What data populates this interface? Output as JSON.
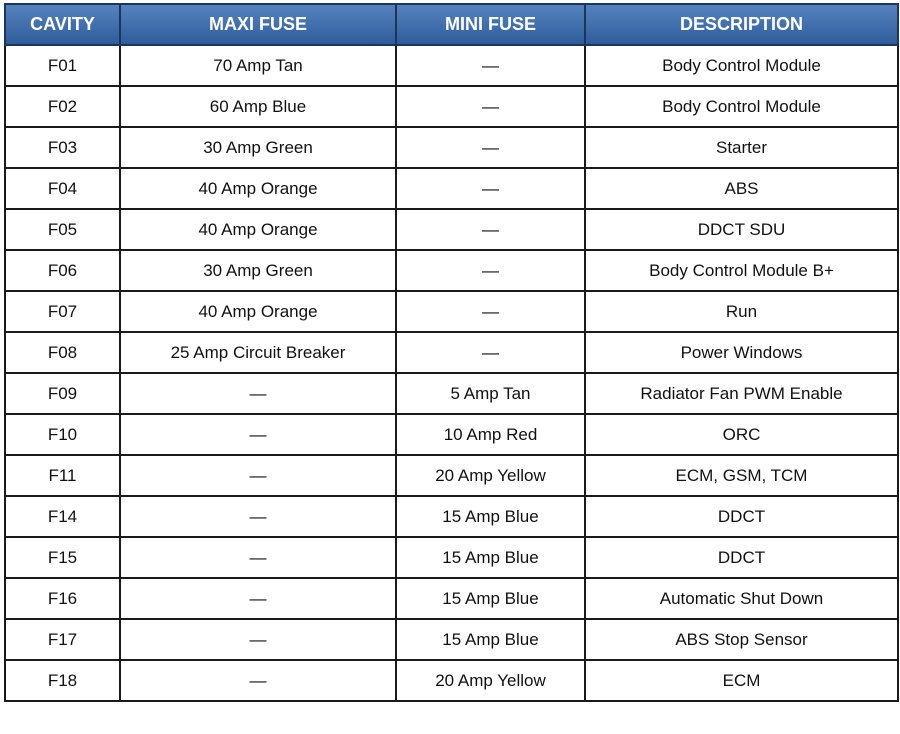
{
  "table": {
    "header": [
      "CAVITY",
      "MAXI FUSE",
      "MINI FUSE",
      "DESCRIPTION"
    ],
    "rows": [
      [
        "F01",
        "70 Amp Tan",
        "—",
        "Body Control Module"
      ],
      [
        "F02",
        "60 Amp Blue",
        "—",
        "Body Control Module"
      ],
      [
        "F03",
        "30 Amp Green",
        "—",
        "Starter"
      ],
      [
        "F04",
        "40 Amp Orange",
        "—",
        "ABS"
      ],
      [
        "F05",
        "40 Amp Orange",
        "—",
        "DDCT SDU"
      ],
      [
        "F06",
        "30 Amp Green",
        "—",
        "Body Control Module B+"
      ],
      [
        "F07",
        "40 Amp Orange",
        "—",
        "Run"
      ],
      [
        "F08",
        "25 Amp Circuit Breaker",
        "—",
        "Power Windows"
      ],
      [
        "F09",
        "—",
        "5 Amp Tan",
        "Radiator Fan PWM Enable"
      ],
      [
        "F10",
        "—",
        "10 Amp Red",
        "ORC"
      ],
      [
        "F11",
        "—",
        "20 Amp Yellow",
        "ECM, GSM, TCM"
      ],
      [
        "F14",
        "—",
        "15 Amp Blue",
        "DDCT"
      ],
      [
        "F15",
        "—",
        "15 Amp Blue",
        "DDCT"
      ],
      [
        "F16",
        "—",
        "15 Amp Blue",
        "Automatic Shut Down"
      ],
      [
        "F17",
        "—",
        "15 Amp Blue",
        "ABS Stop Sensor"
      ],
      [
        "F18",
        "—",
        "20 Amp Yellow",
        "ECM"
      ]
    ]
  }
}
